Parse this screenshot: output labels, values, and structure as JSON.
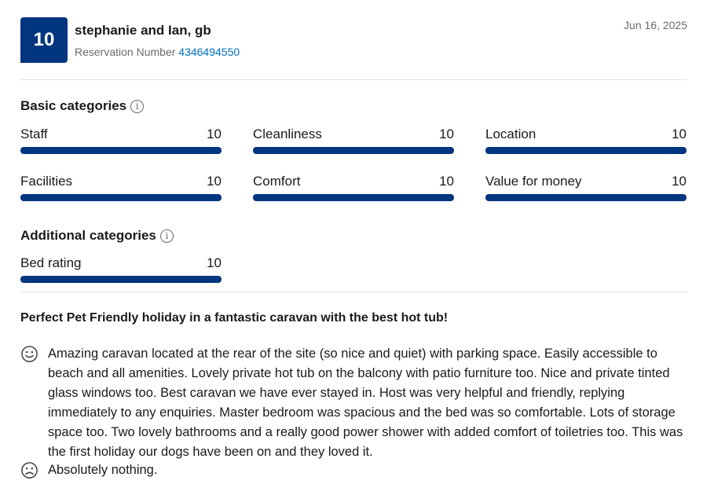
{
  "header": {
    "score": "10",
    "reviewer_name": "stephanie and Ian, gb",
    "reservation_label": "Reservation Number",
    "reservation_number": "4346494550",
    "date": "Jun 16, 2025"
  },
  "basic_categories": {
    "title": "Basic categories",
    "info_icon": "info-icon",
    "items": [
      {
        "label": "Staff",
        "score": "10",
        "fill": 1.0
      },
      {
        "label": "Cleanliness",
        "score": "10",
        "fill": 1.0
      },
      {
        "label": "Location",
        "score": "10",
        "fill": 1.0
      },
      {
        "label": "Facilities",
        "score": "10",
        "fill": 1.0
      },
      {
        "label": "Comfort",
        "score": "10",
        "fill": 1.0
      },
      {
        "label": "Value for money",
        "score": "10",
        "fill": 1.0
      }
    ]
  },
  "additional_categories": {
    "title": "Additional categories",
    "info_icon": "info-icon",
    "items": [
      {
        "label": "Bed rating",
        "score": "10",
        "fill": 1.0
      }
    ]
  },
  "review": {
    "title": "Perfect Pet Friendly holiday in a fantastic caravan with the best hot tub!",
    "positive": {
      "icon": "smile-icon",
      "text": "Amazing caravan located at the rear of the site (so nice and quiet) with parking space. Easily accessible to beach and all amenities. Lovely private hot tub on the balcony with patio furniture too. Nice and private tinted glass windows too. Best caravan we have ever stayed in. Host was very helpful and friendly, replying immediately to any enquiries. Master bedroom was spacious and the bed was so comfortable. Lots of storage space too. Two lovely bathrooms and a really good power shower with added comfort of toiletries too. This was the first holiday our dogs have been on and they loved it."
    },
    "negative": {
      "icon": "frown-icon",
      "text": "Absolutely nothing."
    }
  },
  "colors": {
    "brand": "#003580",
    "link": "#0071c2",
    "muted": "#6b6b6b"
  }
}
